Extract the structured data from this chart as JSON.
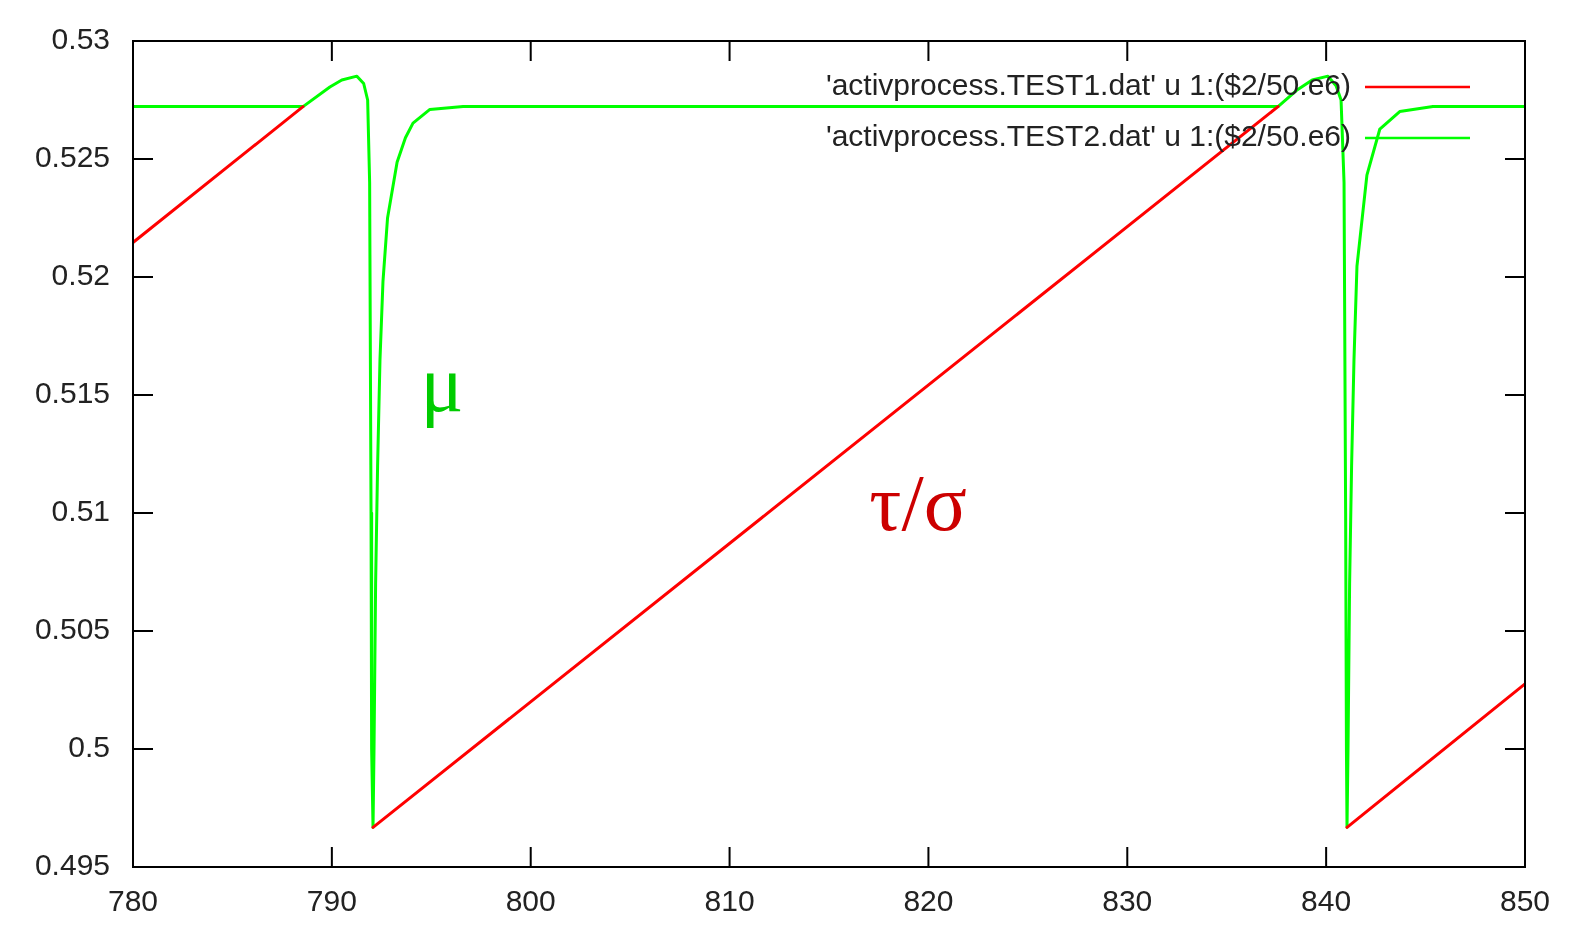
{
  "chart_data": {
    "type": "line",
    "xlim": [
      780,
      850
    ],
    "ylim": [
      0.495,
      0.53
    ],
    "xticks": [
      780,
      790,
      800,
      810,
      820,
      830,
      840,
      850
    ],
    "yticks": [
      0.495,
      0.5,
      0.505,
      0.51,
      0.515,
      0.52,
      0.525,
      0.53
    ],
    "grid": false,
    "legend": "top right",
    "marker": "none",
    "line_style": "solid",
    "series": [
      {
        "name": "'activprocess.TEST1.dat' u 1:($2/50.e6)",
        "color": "#ff0000",
        "x": [
          780,
          788.55,
          790,
          792.07,
          837.58,
          839,
          841.05,
          850
        ],
        "values": [
          0.52146,
          0.52722,
          null,
          0.49668,
          0.52722,
          null,
          0.49668,
          0.50276
        ]
      },
      {
        "name": "'activprocess.TEST2.dat' u 1:($2/50.e6)",
        "color": "#00ff00",
        "x": [
          780,
          788.55,
          789.9,
          790.5,
          791.26,
          791.6,
          791.8,
          791.9,
          791.97,
          792.0,
          792.07,
          792.12,
          792.2,
          792.3,
          792.42,
          792.57,
          792.8,
          793.28,
          793.7,
          794.08,
          794.93,
          796.6,
          837.58,
          838.5,
          839.3,
          840.09,
          840.5,
          840.75,
          840.9,
          840.98,
          841.02,
          841.05,
          841.1,
          841.18,
          841.28,
          841.4,
          841.55,
          842.05,
          842.7,
          843.7,
          845.37,
          850
        ],
        "values": [
          0.52722,
          0.52722,
          0.52805,
          0.52835,
          0.52851,
          0.5282,
          0.5275,
          0.524,
          0.51,
          0.5,
          0.49668,
          0.5,
          0.507,
          0.512,
          0.5165,
          0.5198,
          0.5225,
          0.52486,
          0.5259,
          0.52652,
          0.5271,
          0.52722,
          0.52722,
          0.5279,
          0.52835,
          0.52851,
          0.5281,
          0.5275,
          0.524,
          0.51,
          0.5,
          0.49668,
          0.5,
          0.507,
          0.512,
          0.5165,
          0.52046,
          0.52432,
          0.52627,
          0.52701,
          0.52722,
          0.52722
        ]
      }
    ],
    "annotations": [
      "μ",
      "τ/σ"
    ]
  }
}
